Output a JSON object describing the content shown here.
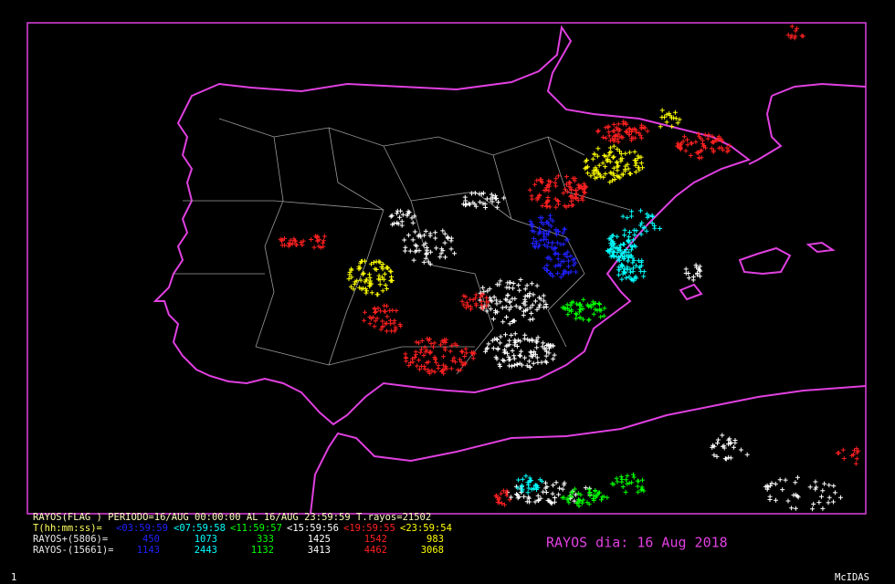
{
  "legend": {
    "header": "RAYOS(FLAG ) PERIODO=16/AUG 00:00:00 AL 16/AUG 23:59:59  T.rayos=21502",
    "time_label": "T(hh:mm:ss)=",
    "periods": [
      {
        "label": "<03:59:59",
        "color": "#2020ff"
      },
      {
        "label": "<07:59:58",
        "color": "#00ffff"
      },
      {
        "label": "<11:59:57",
        "color": "#00ff00"
      },
      {
        "label": "<15:59:56",
        "color": "#ffffff"
      },
      {
        "label": "<19:59:55",
        "color": "#ff2020"
      },
      {
        "label": "<23:59:54",
        "color": "#ffff00"
      }
    ],
    "rows": [
      {
        "label": "RAYOS+(5806)=",
        "values": [
          "450",
          "1073",
          "333",
          "1425",
          "1542",
          "983"
        ]
      },
      {
        "label": "RAYOS-(15661)=",
        "values": [
          "1143",
          "2443",
          "1132",
          "3413",
          "4462",
          "3068"
        ]
      }
    ]
  },
  "title": "RAYOS dia: 16 Aug 2018",
  "footer": {
    "frame": "1",
    "software": "McIDAS"
  }
}
